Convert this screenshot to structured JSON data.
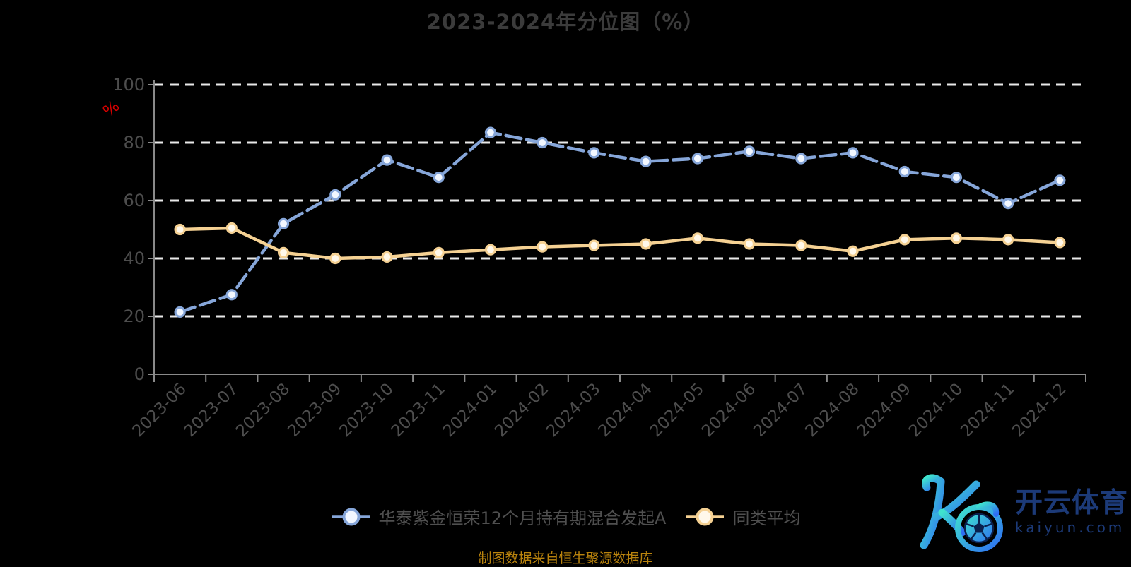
{
  "title": "2023-2024年分位图（%）",
  "caption": "制图数据来自恒生聚源数据库",
  "watermark": {
    "brand": "开云体育",
    "domain": "kaiyun.com"
  },
  "colors": {
    "background": "#000000",
    "title_text": "#3b3b3b",
    "axis_line": "#8a8a8a",
    "grid_line": "#e9e9e9",
    "tick_label": "#4d4d4d",
    "unit_percent": "#d60000",
    "caption_text": "#b9830d",
    "legend_text": "#4f4f4f",
    "fund_line": "#86a6d9",
    "average_line": "#f5d193",
    "watermark_navy": "#1c3a78",
    "logo_teal": "#3fe3cd",
    "logo_blue": "#2e6ef2"
  },
  "chart_data": {
    "type": "line",
    "title": "2023-2024年分位图（%）",
    "unit_label": "%",
    "xlabel": "",
    "ylabel": "%",
    "ylim": [
      0,
      100
    ],
    "yticks": [
      0,
      20,
      40,
      60,
      80,
      100
    ],
    "grid": "horizontal dashed white lines",
    "legend_position": "bottom",
    "categories": [
      "2023-06",
      "2023-07",
      "2023-08",
      "2023-09",
      "2023-10",
      "2023-11",
      "2024-01",
      "2024-02",
      "2024-03",
      "2024-04",
      "2024-05",
      "2024-06",
      "2024-07",
      "2024-08",
      "2024-09",
      "2024-10",
      "2024-11",
      "2024-12"
    ],
    "series": [
      {
        "name": "华泰紫金恒荣12个月持有期混合发起A",
        "color": "#86a6d9",
        "marker_fill": "#f2f7ff",
        "line_style": "dashed",
        "values": [
          21.5,
          27.5,
          52,
          62,
          74,
          68,
          83.5,
          80,
          76.5,
          73.5,
          74.5,
          77,
          74.5,
          76.5,
          70,
          68,
          59,
          67
        ]
      },
      {
        "name": "同类平均",
        "color": "#f5d193",
        "marker_fill": "#fff8ea",
        "line_style": "solid",
        "values": [
          50,
          50.5,
          42,
          40,
          40.5,
          42,
          43,
          44,
          44.5,
          45,
          47,
          45,
          44.5,
          42.5,
          46.5,
          47,
          46.5,
          45.5
        ]
      }
    ]
  }
}
